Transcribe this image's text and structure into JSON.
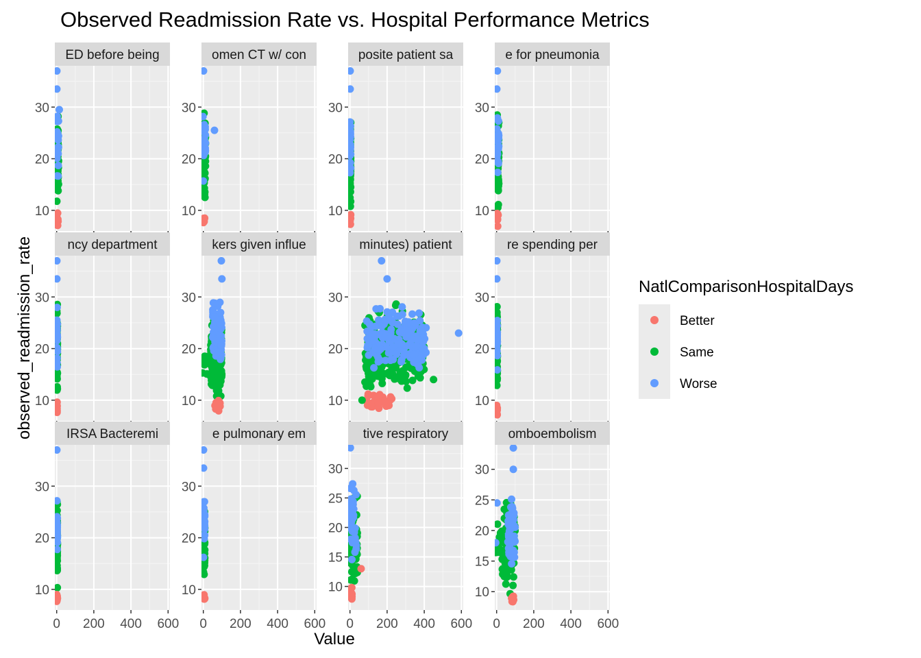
{
  "chart_data": {
    "type": "scatter",
    "title": "Observed Readmission Rate vs. Hospital Performance Metrics",
    "xlabel": "Value",
    "ylabel": "observed_readmission_rate",
    "grid": true,
    "legend": {
      "title": "NatlComparisonHospitalDays",
      "placement": "right",
      "entries": [
        {
          "name": "Better",
          "color": "#F8766D"
        },
        {
          "name": "Same",
          "color": "#00BA38"
        },
        {
          "name": "Worse",
          "color": "#619CFF"
        }
      ]
    },
    "x_ticks": [
      0,
      200,
      400,
      600
    ],
    "xlim": [
      -10,
      610
    ],
    "rows": [
      {
        "ylim": [
          6,
          38
        ],
        "y_ticks": [
          10,
          20,
          30
        ]
      },
      {
        "ylim": [
          6,
          38
        ],
        "y_ticks": [
          10,
          20,
          30
        ]
      },
      {
        "ylim": [
          6,
          38
        ],
        "y_ticks": [
          10,
          20,
          30
        ]
      }
    ],
    "panels": [
      {
        "strip": "ED before being",
        "row": 0,
        "col": 0,
        "clusters": [
          {
            "series": "Same",
            "x": [
              0,
              10
            ],
            "y": [
              9,
              31
            ],
            "n": 60
          },
          {
            "series": "Worse",
            "x": [
              0,
              10
            ],
            "y": [
              14,
              31
            ],
            "n": 22
          },
          {
            "series": "Better",
            "x": [
              0,
              8
            ],
            "y": [
              6.5,
              10
            ],
            "n": 10
          }
        ],
        "points": [
          {
            "series": "Worse",
            "x": 1,
            "y": 37
          },
          {
            "series": "Worse",
            "x": 1,
            "y": 33.5
          },
          {
            "series": "Worse",
            "x": 14,
            "y": 29.5
          }
        ]
      },
      {
        "strip": "omen CT w/ con",
        "row": 0,
        "col": 1,
        "clusters": [
          {
            "series": "Same",
            "x": [
              -4,
              12
            ],
            "y": [
              9,
              31
            ],
            "n": 60
          },
          {
            "series": "Worse",
            "x": [
              -4,
              12
            ],
            "y": [
              14,
              31
            ],
            "n": 22
          },
          {
            "series": "Better",
            "x": [
              0,
              8
            ],
            "y": [
              6.5,
              10
            ],
            "n": 10
          }
        ],
        "points": [
          {
            "series": "Worse",
            "x": 1,
            "y": 37
          },
          {
            "series": "Worse",
            "x": 60,
            "y": 25.5
          }
        ]
      },
      {
        "strip": "posite patient sa",
        "row": 0,
        "col": 2,
        "clusters": [
          {
            "series": "Same",
            "x": [
              0,
              4
            ],
            "y": [
              9,
              31
            ],
            "n": 60
          },
          {
            "series": "Worse",
            "x": [
              0,
              4
            ],
            "y": [
              14,
              31
            ],
            "n": 22
          },
          {
            "series": "Better",
            "x": [
              0,
              4
            ],
            "y": [
              6.5,
              10
            ],
            "n": 10
          }
        ],
        "points": [
          {
            "series": "Worse",
            "x": 1,
            "y": 37
          },
          {
            "series": "Worse",
            "x": 1,
            "y": 33.5
          }
        ]
      },
      {
        "strip": "e for pneumonia",
        "row": 0,
        "col": 3,
        "clusters": [
          {
            "series": "Same",
            "x": [
              0,
              12
            ],
            "y": [
              9,
              31
            ],
            "n": 60
          },
          {
            "series": "Worse",
            "x": [
              0,
              12
            ],
            "y": [
              14,
              31
            ],
            "n": 22
          },
          {
            "series": "Better",
            "x": [
              0,
              8
            ],
            "y": [
              6.5,
              10
            ],
            "n": 10
          }
        ],
        "points": [
          {
            "series": "Worse",
            "x": 4,
            "y": 37
          },
          {
            "series": "Worse",
            "x": 1,
            "y": 33.5
          }
        ]
      },
      {
        "strip": "ncy department",
        "row": 1,
        "col": 0,
        "clusters": [
          {
            "series": "Same",
            "x": [
              0,
              4
            ],
            "y": [
              9,
              31
            ],
            "n": 60
          },
          {
            "series": "Worse",
            "x": [
              0,
              4
            ],
            "y": [
              14,
              31
            ],
            "n": 22
          },
          {
            "series": "Better",
            "x": [
              0,
              4
            ],
            "y": [
              6.5,
              10
            ],
            "n": 10
          }
        ],
        "points": [
          {
            "series": "Worse",
            "x": 1,
            "y": 37
          },
          {
            "series": "Worse",
            "x": 1,
            "y": 33.5
          }
        ]
      },
      {
        "strip": "kers given influe",
        "row": 1,
        "col": 1,
        "clusters": [
          {
            "series": "Same",
            "x": [
              40,
              100
            ],
            "y": [
              8,
              28
            ],
            "n": 140
          },
          {
            "series": "Worse",
            "x": [
              50,
              100
            ],
            "y": [
              14,
              31
            ],
            "n": 80
          },
          {
            "series": "Same",
            "x": [
              -4,
              40
            ],
            "y": [
              11,
              20
            ],
            "n": 12
          },
          {
            "series": "Better",
            "x": [
              60,
              95
            ],
            "y": [
              6.5,
              11
            ],
            "n": 14
          }
        ],
        "points": [
          {
            "series": "Worse",
            "x": 97,
            "y": 37
          },
          {
            "series": "Worse",
            "x": 100,
            "y": 33.5
          }
        ]
      },
      {
        "strip": "minutes) patient",
        "row": 1,
        "col": 2,
        "clusters": [
          {
            "series": "Same",
            "x": [
              80,
              400
            ],
            "y": [
              9,
              30
            ],
            "n": 280
          },
          {
            "series": "Worse",
            "x": [
              90,
              410
            ],
            "y": [
              14,
              30
            ],
            "n": 170
          },
          {
            "series": "Better",
            "x": [
              90,
              230
            ],
            "y": [
              6.5,
              13
            ],
            "n": 26
          }
        ],
        "points": [
          {
            "series": "Worse",
            "x": 170,
            "y": 37
          },
          {
            "series": "Worse",
            "x": 200,
            "y": 33.5
          },
          {
            "series": "Worse",
            "x": 585,
            "y": 23
          },
          {
            "series": "Same",
            "x": 450,
            "y": 14
          },
          {
            "series": "Same",
            "x": 65,
            "y": 10
          }
        ]
      },
      {
        "strip": "re spending per",
        "row": 1,
        "col": 3,
        "clusters": [
          {
            "series": "Same",
            "x": [
              0,
              4
            ],
            "y": [
              9,
              31
            ],
            "n": 60
          },
          {
            "series": "Worse",
            "x": [
              0,
              4
            ],
            "y": [
              14,
              31
            ],
            "n": 22
          },
          {
            "series": "Better",
            "x": [
              0,
              4
            ],
            "y": [
              6.5,
              10
            ],
            "n": 10
          }
        ],
        "points": [
          {
            "series": "Worse",
            "x": 1,
            "y": 37
          },
          {
            "series": "Worse",
            "x": 1,
            "y": 33.5
          }
        ]
      },
      {
        "strip": "IRSA Bacteremi",
        "row": 2,
        "col": 0,
        "clusters": [
          {
            "series": "Same",
            "x": [
              0,
              4
            ],
            "y": [
              9,
              29
            ],
            "n": 60
          },
          {
            "series": "Worse",
            "x": [
              0,
              4
            ],
            "y": [
              14,
              29
            ],
            "n": 22
          },
          {
            "series": "Better",
            "x": [
              0,
              4
            ],
            "y": [
              6.5,
              10
            ],
            "n": 10
          }
        ],
        "points": [
          {
            "series": "Worse",
            "x": 1,
            "y": 37
          }
        ]
      },
      {
        "strip": "e pulmonary em",
        "row": 2,
        "col": 1,
        "clusters": [
          {
            "series": "Same",
            "x": [
              0,
              8
            ],
            "y": [
              9,
              30
            ],
            "n": 60
          },
          {
            "series": "Worse",
            "x": [
              0,
              8
            ],
            "y": [
              14,
              31
            ],
            "n": 22
          },
          {
            "series": "Better",
            "x": [
              0,
              8
            ],
            "y": [
              6.5,
              10
            ],
            "n": 10
          }
        ],
        "points": [
          {
            "series": "Worse",
            "x": 1,
            "y": 37
          },
          {
            "series": "Worse",
            "x": 1,
            "y": 33.5
          }
        ]
      },
      {
        "strip": "tive respiratory",
        "row": 2,
        "col": 2,
        "ylim": [
          6,
          34
        ],
        "y_ticks": [
          10,
          15,
          20,
          25,
          30
        ],
        "clusters": [
          {
            "series": "Same",
            "x": [
              0,
              40
            ],
            "y": [
              8.5,
              27
            ],
            "n": 80
          },
          {
            "series": "Worse",
            "x": [
              0,
              35
            ],
            "y": [
              12,
              30
            ],
            "n": 40
          },
          {
            "series": "Better",
            "x": [
              0,
              12
            ],
            "y": [
              6.5,
              11
            ],
            "n": 12
          }
        ],
        "points": [
          {
            "series": "Worse",
            "x": 2,
            "y": 33.5
          },
          {
            "series": "Better",
            "x": 60,
            "y": 13
          }
        ]
      },
      {
        "strip": "omboembolism",
        "row": 2,
        "col": 3,
        "ylim": [
          7,
          34
        ],
        "y_ticks": [
          10,
          15,
          20,
          25,
          30
        ],
        "clusters": [
          {
            "series": "Same",
            "x": [
              30,
              100
            ],
            "y": [
              8.5,
              27
            ],
            "n": 90
          },
          {
            "series": "Worse",
            "x": [
              60,
              100
            ],
            "y": [
              12,
              28
            ],
            "n": 60
          },
          {
            "series": "Same",
            "x": [
              -8,
              30
            ],
            "y": [
              13,
              24
            ],
            "n": 12
          },
          {
            "series": "Better",
            "x": [
              80,
              95
            ],
            "y": [
              7.5,
              10
            ],
            "n": 8
          }
        ],
        "points": [
          {
            "series": "Worse",
            "x": 90,
            "y": 33.5
          },
          {
            "series": "Worse",
            "x": 90,
            "y": 30
          },
          {
            "series": "Worse",
            "x": 2,
            "y": 24.5
          },
          {
            "series": "Worse",
            "x": -5,
            "y": 18
          }
        ]
      }
    ]
  }
}
